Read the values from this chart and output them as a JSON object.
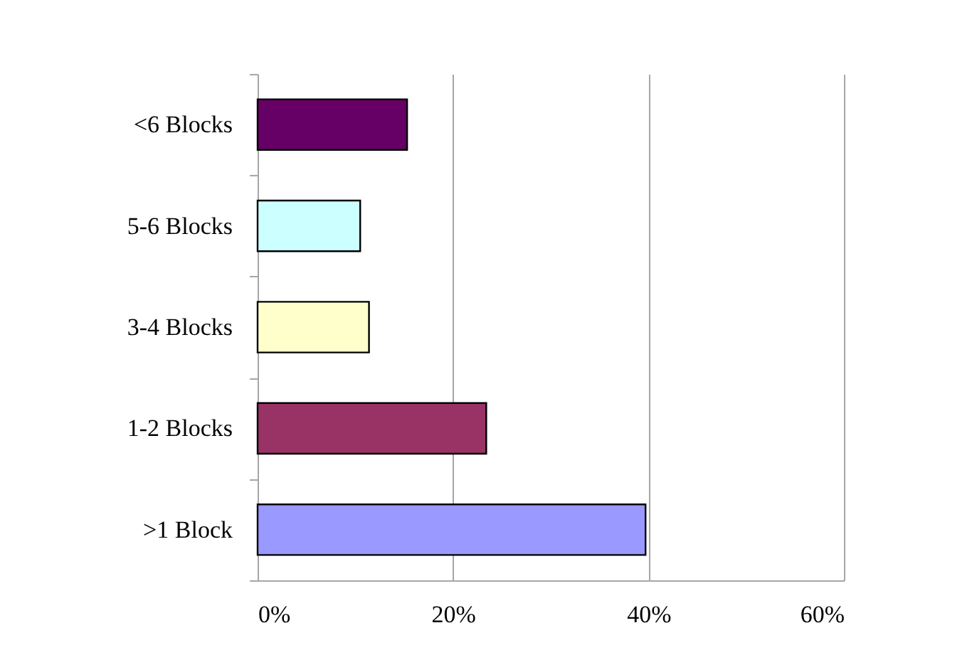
{
  "chart_data": {
    "type": "bar",
    "orientation": "horizontal",
    "categories": [
      "<6 Blocks",
      "5-6 Blocks",
      "3-4 Blocks",
      "1-2 Blocks",
      ">1 Block"
    ],
    "values": [
      15.3,
      10.5,
      11.4,
      23.4,
      39.7
    ],
    "colors": [
      "#660066",
      "#ccffff",
      "#ffffcc",
      "#993366",
      "#9999ff"
    ],
    "xlim": [
      0,
      60
    ],
    "xticks": [
      {
        "value": 0,
        "label": "0%"
      },
      {
        "value": 20,
        "label": "20%"
      },
      {
        "value": 40,
        "label": "40%"
      },
      {
        "value": 60,
        "label": "60%"
      }
    ],
    "grid": "x",
    "legend": false
  }
}
